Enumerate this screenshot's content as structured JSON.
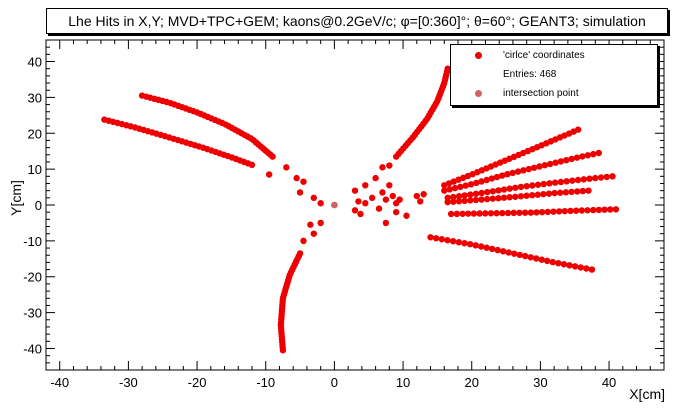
{
  "chart_data": {
    "type": "scatter",
    "title": "Lhe Hits in X,Y; MVD+TPC+GEM; kaons@0.2GeV/c; φ=[0:360]°; θ=60°; GEANT3; simulation",
    "xlabel": "X[cm]",
    "ylabel": "Y[cm]",
    "xlim": [
      -42,
      48
    ],
    "ylim": [
      -46,
      46
    ],
    "xticks": [
      -40,
      -30,
      -20,
      -10,
      0,
      10,
      20,
      30,
      40
    ],
    "yticks": [
      -40,
      -30,
      -20,
      -10,
      0,
      10,
      20,
      30,
      40
    ],
    "grid": false,
    "legend_position": "top-right",
    "legend": {
      "entries_label": "Entries:  468"
    },
    "series": [
      {
        "name": "'cirlce' coordinates",
        "color": "#ee0000",
        "tracks": [
          {
            "x": [
              -28.0,
              -24,
              -20,
              -16,
              -12,
              -9.0
            ],
            "y": [
              30.5,
              28.5,
              25.8,
              22.6,
              18.4,
              13.5
            ],
            "n": 40
          },
          {
            "x": [
              -33.5,
              -29,
              -24,
              -19,
              -15,
              -12.0
            ],
            "y": [
              23.8,
              21.6,
              18.8,
              15.9,
              13.3,
              11.2
            ],
            "n": 36
          },
          {
            "x": [
              9.0,
              11.5,
              13.5,
              15.0,
              16.0,
              16.5
            ],
            "y": [
              13.5,
              19.0,
              24.0,
              29.0,
              34.0,
              38.0
            ],
            "n": 32
          },
          {
            "x": [
              -7.5,
              -7.8,
              -7.5,
              -6.5,
              -5.0
            ],
            "y": [
              -40.5,
              -33.5,
              -26.0,
              -19.5,
              -13.5
            ],
            "n": 36
          },
          {
            "x": [
              16.0,
              20.0,
              25.0,
              30.0,
              35.5
            ],
            "y": [
              5.5,
              8.5,
              12.5,
              16.5,
              21.0
            ],
            "n": 30
          },
          {
            "x": [
              16.0,
              20.0,
              25.0,
              30.0,
              36.0,
              38.5
            ],
            "y": [
              4.0,
              5.8,
              8.5,
              10.8,
              13.5,
              14.5
            ],
            "n": 30
          },
          {
            "x": [
              16.5,
              22.0,
              27.0,
              32.0,
              37.0,
              40.5
            ],
            "y": [
              2.0,
              3.5,
              5.0,
              6.2,
              7.3,
              8.0
            ],
            "n": 30
          },
          {
            "x": [
              16.5,
              22.0,
              27.0,
              32.0,
              37.0
            ],
            "y": [
              0.8,
              1.6,
              2.4,
              3.3,
              4.0
            ],
            "n": 26
          },
          {
            "x": [
              17.0,
              23.0,
              29.0,
              35.0,
              41.0
            ],
            "y": [
              -2.5,
              -2.3,
              -2.1,
              -1.6,
              -1.2
            ],
            "n": 30
          },
          {
            "x": [
              14.0,
              20.0,
              26.0,
              32.0,
              37.5
            ],
            "y": [
              -9.0,
              -11.0,
              -13.5,
              -16.0,
              -18.0
            ],
            "n": 30
          }
        ],
        "points": [
          {
            "x": -7.0,
            "y": 10.5
          },
          {
            "x": -5.5,
            "y": 7.5
          },
          {
            "x": -5.0,
            "y": 3.5
          },
          {
            "x": -4.5,
            "y": 6.5
          },
          {
            "x": -3.0,
            "y": 2.0
          },
          {
            "x": -2.0,
            "y": 0.5
          },
          {
            "x": -9.5,
            "y": 8.5
          },
          {
            "x": -3.5,
            "y": -5.5
          },
          {
            "x": -4.5,
            "y": -10.0
          },
          {
            "x": -3.0,
            "y": -8.0
          },
          {
            "x": -2.0,
            "y": -5.0
          },
          {
            "x": 3.0,
            "y": 4.0
          },
          {
            "x": 3.0,
            "y": -1.5
          },
          {
            "x": 3.5,
            "y": 1.0
          },
          {
            "x": 3.8,
            "y": -2.5
          },
          {
            "x": 4.5,
            "y": 0.5
          },
          {
            "x": 4.5,
            "y": 5.5
          },
          {
            "x": 5.5,
            "y": 2.0
          },
          {
            "x": 6.0,
            "y": 7.5
          },
          {
            "x": 6.5,
            "y": -1.0
          },
          {
            "x": 7.0,
            "y": 3.5
          },
          {
            "x": 7.5,
            "y": 1.5
          },
          {
            "x": 7.0,
            "y": 10.5
          },
          {
            "x": 8.0,
            "y": 5.5
          },
          {
            "x": 7.5,
            "y": -5.0
          },
          {
            "x": 8.5,
            "y": 2.5
          },
          {
            "x": 9.0,
            "y": 0.5
          },
          {
            "x": 9.5,
            "y": 1.5
          },
          {
            "x": 9.0,
            "y": -2.0
          },
          {
            "x": 8.0,
            "y": 11.0
          },
          {
            "x": 12.0,
            "y": 2.5
          },
          {
            "x": 12.5,
            "y": 1.0
          },
          {
            "x": 13.0,
            "y": 3.0
          },
          {
            "x": 10.5,
            "y": -3.0
          }
        ]
      },
      {
        "name": "intersection point",
        "color": "#cc6666",
        "points": [
          {
            "x": 0.0,
            "y": 0.0
          }
        ]
      }
    ]
  }
}
